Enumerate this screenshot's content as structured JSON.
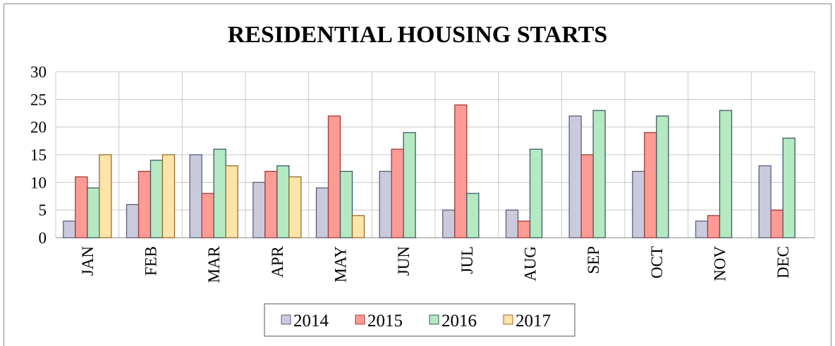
{
  "chart_data": {
    "type": "bar",
    "title": "RESIDENTIAL HOUSING STARTS",
    "categories": [
      "JAN",
      "FEB",
      "MAR",
      "APR",
      "MAY",
      "JUN",
      "JUL",
      "AUG",
      "SEP",
      "OCT",
      "NOV",
      "DEC"
    ],
    "series": [
      {
        "name": "2014",
        "color": "#c9cbdc",
        "values": [
          3,
          6,
          15,
          10,
          9,
          12,
          5,
          5,
          22,
          12,
          3,
          13
        ]
      },
      {
        "name": "2015",
        "color": "#ff9b95",
        "values": [
          11,
          12,
          8,
          12,
          22,
          16,
          24,
          3,
          15,
          19,
          4,
          5
        ]
      },
      {
        "name": "2016",
        "color": "#b4e9c2",
        "values": [
          9,
          14,
          16,
          13,
          12,
          19,
          8,
          16,
          23,
          22,
          23,
          18
        ]
      },
      {
        "name": "2017",
        "color": "#fde4a8",
        "values": [
          15,
          15,
          13,
          11,
          4,
          null,
          null,
          null,
          null,
          null,
          null,
          null
        ]
      }
    ],
    "ylim": [
      0,
      30
    ],
    "yticks": [
      0,
      5,
      10,
      15,
      20,
      25,
      30
    ],
    "grid": true,
    "legend": "bottom"
  }
}
